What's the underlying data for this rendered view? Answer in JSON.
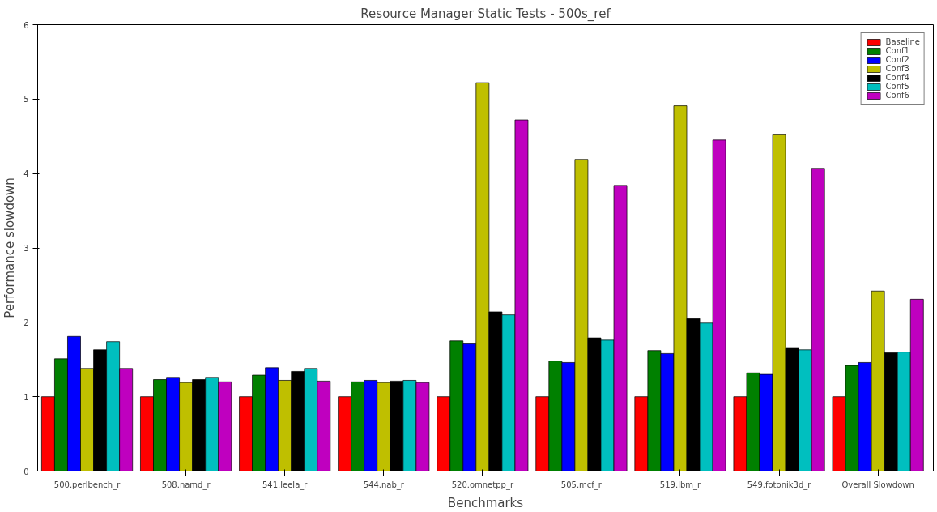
{
  "chart_data": {
    "type": "bar",
    "title": "Resource Manager Static Tests - 500s_ref",
    "xlabel": "Benchmarks",
    "ylabel": "Performance slowdown",
    "categories": [
      "500.perlbench_r",
      "508.namd_r",
      "541.leela_r",
      "544.nab_r",
      "520.omnetpp_r",
      "505.mcf_r",
      "519.lbm_r",
      "549.fotonik3d_r",
      "Overall Slowdown"
    ],
    "series": [
      {
        "name": "Baseline",
        "color": "#ff0000",
        "values": [
          1.0,
          1.0,
          1.0,
          1.0,
          1.0,
          1.0,
          1.0,
          1.0,
          1.0
        ]
      },
      {
        "name": "Conf1",
        "color": "#008000",
        "values": [
          1.51,
          1.23,
          1.29,
          1.2,
          1.75,
          1.48,
          1.62,
          1.32,
          1.42
        ]
      },
      {
        "name": "Conf2",
        "color": "#0000ff",
        "values": [
          1.81,
          1.26,
          1.39,
          1.22,
          1.71,
          1.46,
          1.58,
          1.3,
          1.46
        ]
      },
      {
        "name": "Conf3",
        "color": "#bfbf00",
        "values": [
          1.38,
          1.19,
          1.22,
          1.19,
          5.22,
          4.19,
          4.91,
          4.52,
          2.42
        ]
      },
      {
        "name": "Conf4",
        "color": "#000000",
        "values": [
          1.63,
          1.23,
          1.34,
          1.21,
          2.14,
          1.79,
          2.05,
          1.66,
          1.59
        ]
      },
      {
        "name": "Conf5",
        "color": "#00bfbf",
        "values": [
          1.74,
          1.26,
          1.38,
          1.22,
          2.1,
          1.76,
          1.99,
          1.63,
          1.6
        ]
      },
      {
        "name": "Conf6",
        "color": "#bf00bf",
        "values": [
          1.38,
          1.2,
          1.21,
          1.19,
          4.72,
          3.84,
          4.45,
          4.07,
          2.31
        ]
      }
    ],
    "ylim": [
      0,
      6
    ],
    "yticks": [
      0,
      1,
      2,
      3,
      4,
      5,
      6
    ],
    "grid": false,
    "legend": "top right"
  }
}
